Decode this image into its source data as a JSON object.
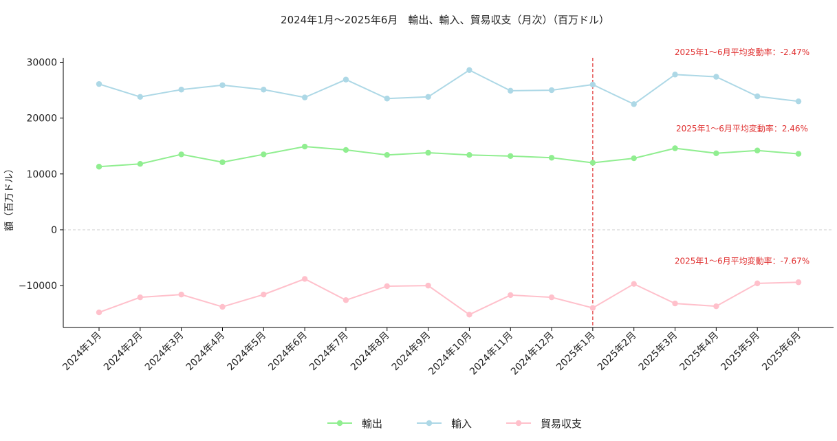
{
  "chart_data": {
    "type": "line",
    "title": "2024年1月～2025年6月　輸出、輸入、貿易収支（月次）（百万ドル）",
    "xlabel": "",
    "ylabel": "額（百万ドル）",
    "ylim": [
      -17500,
      30800
    ],
    "yticks": [
      -10000,
      0,
      10000,
      20000,
      30000
    ],
    "grid": false,
    "legend_position": "bottom-center",
    "categories": [
      "2024年1月",
      "2024年2月",
      "2024年3月",
      "2024年4月",
      "2024年5月",
      "2024年6月",
      "2024年7月",
      "2024年8月",
      "2024年9月",
      "2024年10月",
      "2024年11月",
      "2024年12月",
      "2025年1月",
      "2025年2月",
      "2025年3月",
      "2025年4月",
      "2025年5月",
      "2025年6月"
    ],
    "series": [
      {
        "name": "輸出",
        "color": "#90EE90",
        "values": [
          11300,
          11800,
          13500,
          12100,
          13500,
          14900,
          14300,
          13400,
          13800,
          13400,
          13200,
          12900,
          12000,
          12800,
          14600,
          13700,
          14200,
          13600
        ]
      },
      {
        "name": "輸入",
        "color": "#ADD8E6",
        "values": [
          26100,
          23800,
          25100,
          25900,
          25100,
          23700,
          26900,
          23500,
          23800,
          28600,
          24900,
          25000,
          26000,
          22500,
          27800,
          27400,
          23900,
          23000
        ]
      },
      {
        "name": "貿易収支",
        "color": "#FFC0CB",
        "values": [
          -14800,
          -12100,
          -11600,
          -13800,
          -11600,
          -8800,
          -12600,
          -10100,
          -10000,
          -15200,
          -11700,
          -12100,
          -14000,
          -9700,
          -13200,
          -13700,
          -9600,
          -9400
        ]
      }
    ],
    "reference_line": {
      "category": "2025年1月",
      "color": "#e03030",
      "style": "dashed"
    },
    "zero_line": {
      "y": 0,
      "color": "#cccccc",
      "style": "dashed"
    },
    "annotations": [
      {
        "text": "2025年1～6月平均変動率：-2.47%",
        "series": "輸入",
        "color": "#e03030"
      },
      {
        "text": "2025年1～6月平均変動率：2.46%",
        "series": "輸出",
        "color": "#e03030"
      },
      {
        "text": "2025年1～6月平均変動率：-7.67%",
        "series": "貿易収支",
        "color": "#e03030"
      }
    ]
  }
}
